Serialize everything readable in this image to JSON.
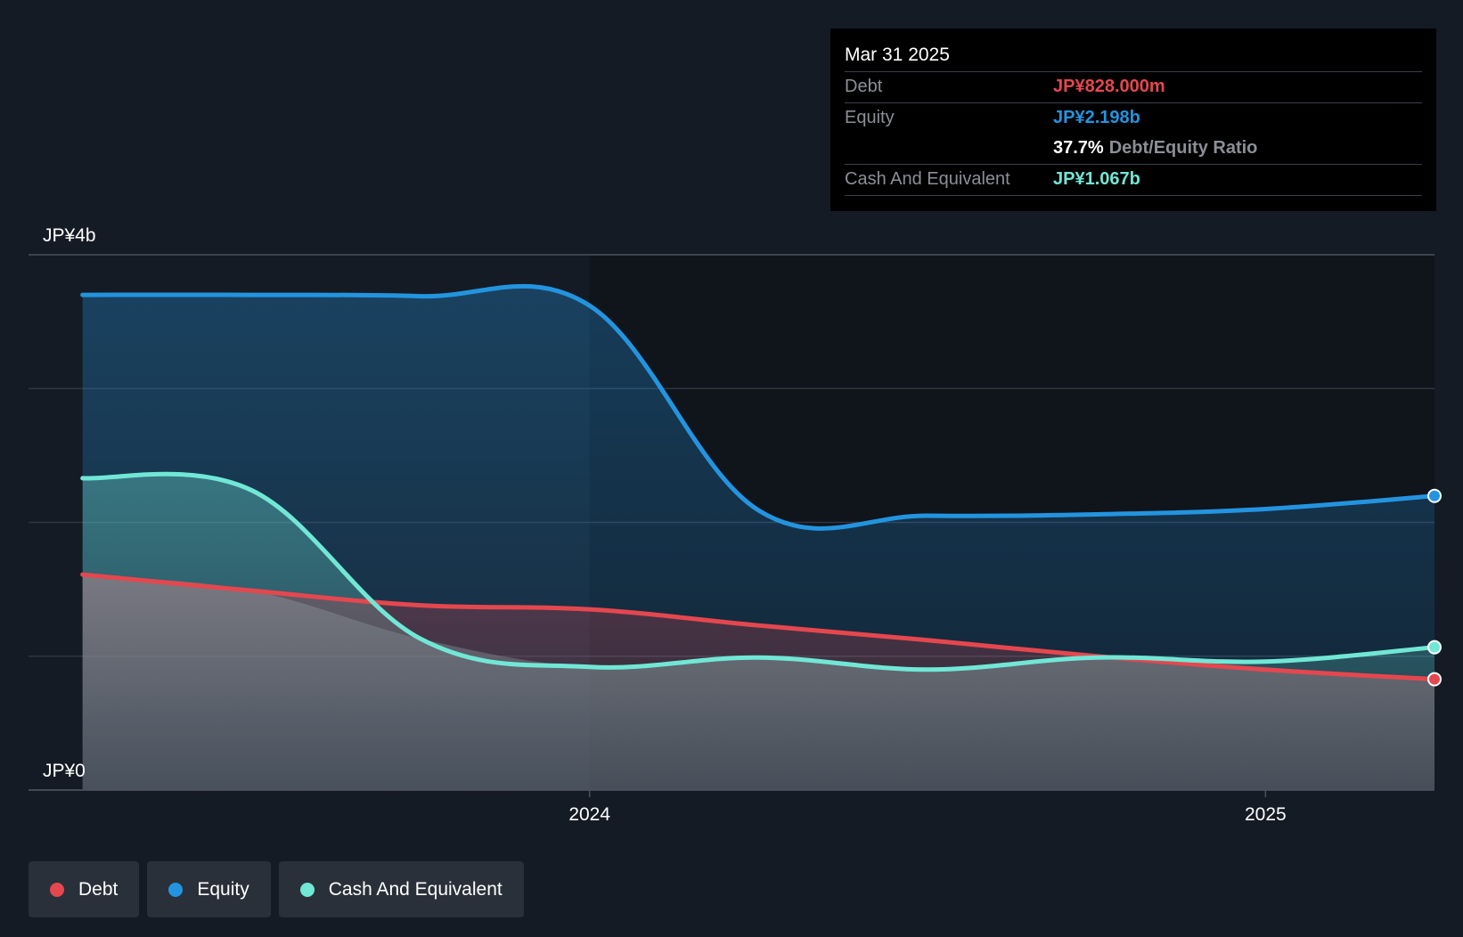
{
  "tooltip": {
    "date": "Mar 31 2025",
    "debt_label": "Debt",
    "debt_value": "JP¥828.000m",
    "equity_label": "Equity",
    "equity_value": "JP¥2.198b",
    "ratio_value": "37.7%",
    "ratio_label": "Debt/Equity Ratio",
    "cash_label": "Cash And Equivalent",
    "cash_value": "JP¥1.067b"
  },
  "legend": {
    "debt": "Debt",
    "equity": "Equity",
    "cash": "Cash And Equivalent"
  },
  "colors": {
    "background": "#151b24",
    "debt": "#e5474e",
    "equity": "#2394df",
    "cash": "#71e7d6",
    "axis_text": "#ffffff",
    "grid": "#3a414c"
  },
  "chart_data": {
    "type": "area",
    "title": "",
    "xlabel": "",
    "ylabel": "",
    "ylim": [
      0,
      4
    ],
    "y_unit": "JP¥ billions",
    "y_tick_labels": [
      {
        "value": 4,
        "label": "JP¥4b"
      },
      {
        "value": 0,
        "label": "JP¥0"
      }
    ],
    "y_gridlines": [
      0,
      1,
      2,
      3,
      4
    ],
    "x_range": [
      2023.17,
      2025.25
    ],
    "x_tick_labels": [
      {
        "value": 2024.0,
        "label": "2024"
      },
      {
        "value": 2025.0,
        "label": "2025"
      }
    ],
    "forecast_shading_from": 2024.0,
    "series": [
      {
        "name": "Equity",
        "key": "equity",
        "points": [
          [
            2023.25,
            3.7
          ],
          [
            2023.5,
            3.7
          ],
          [
            2023.75,
            3.69
          ],
          [
            2024.0,
            3.62
          ],
          [
            2024.25,
            2.09
          ],
          [
            2024.5,
            2.05
          ],
          [
            2024.75,
            2.06
          ],
          [
            2025.0,
            2.1
          ],
          [
            2025.25,
            2.198
          ]
        ]
      },
      {
        "name": "Cash And Equivalent",
        "key": "cash",
        "points": [
          [
            2023.25,
            2.33
          ],
          [
            2023.5,
            2.24
          ],
          [
            2023.75,
            1.13
          ],
          [
            2024.0,
            0.92
          ],
          [
            2024.25,
            0.99
          ],
          [
            2024.5,
            0.9
          ],
          [
            2024.75,
            0.99
          ],
          [
            2025.0,
            0.96
          ],
          [
            2025.25,
            1.067
          ]
        ]
      },
      {
        "name": "Debt",
        "key": "debt",
        "points": [
          [
            2023.25,
            1.61
          ],
          [
            2023.5,
            1.49
          ],
          [
            2023.75,
            1.38
          ],
          [
            2024.0,
            1.35
          ],
          [
            2024.25,
            1.23
          ],
          [
            2024.5,
            1.12
          ],
          [
            2024.75,
            1.0
          ],
          [
            2025.0,
            0.9
          ],
          [
            2025.25,
            0.828
          ]
        ]
      }
    ]
  }
}
